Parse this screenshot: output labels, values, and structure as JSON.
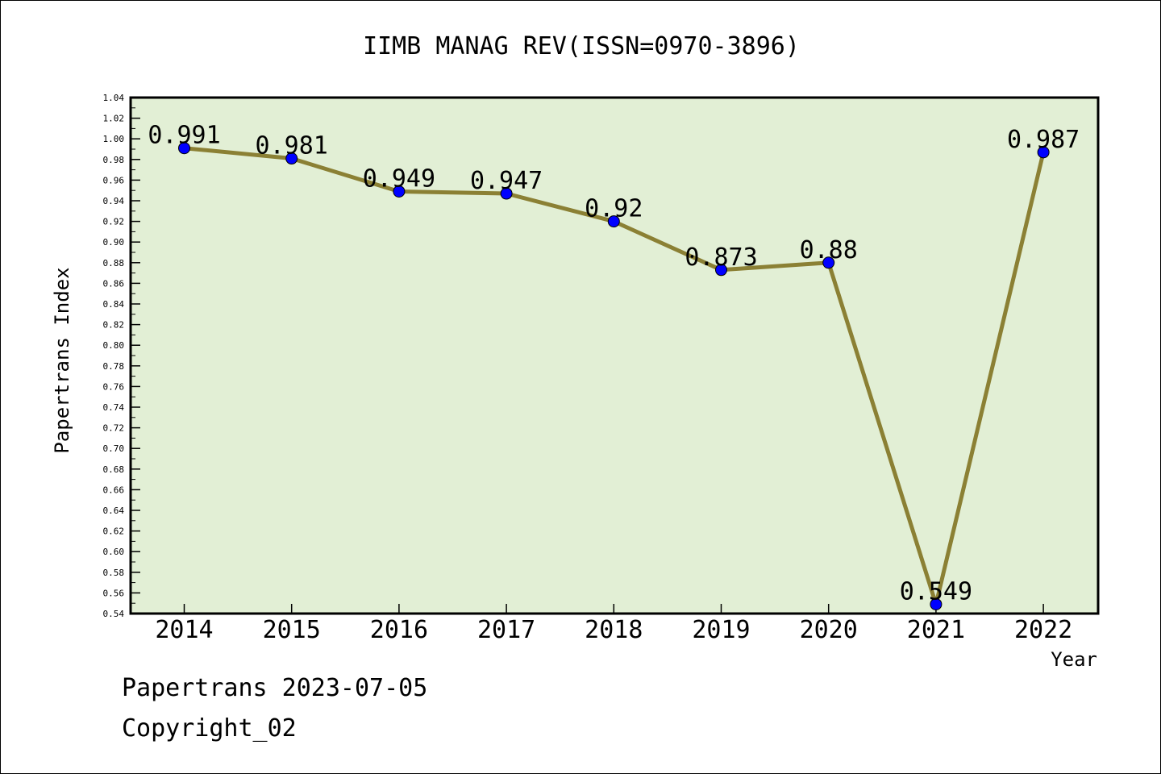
{
  "chart_data": {
    "type": "line",
    "title": "IIMB MANAG REV(ISSN=0970-3896)",
    "xlabel": "Year",
    "ylabel": "Papertrans Index",
    "categories": [
      "2014",
      "2015",
      "2016",
      "2017",
      "2018",
      "2019",
      "2020",
      "2021",
      "2022"
    ],
    "series": [
      {
        "values": [
          0.991,
          0.981,
          0.949,
          0.947,
          0.92,
          0.873,
          0.88,
          0.549,
          0.987
        ]
      }
    ],
    "data_labels": [
      "0.991",
      "0.981",
      "0.949",
      "0.947",
      "0.92",
      "0.873",
      "0.88",
      "0.549",
      "0.987"
    ],
    "ylim": [
      0.54,
      1.04
    ],
    "yticks": [
      "0.54",
      "0.56",
      "0.58",
      "0.60",
      "0.62",
      "0.64",
      "0.66",
      "0.68",
      "0.70",
      "0.72",
      "0.74",
      "0.76",
      "0.78",
      "0.80",
      "0.82",
      "0.84",
      "0.86",
      "0.88",
      "0.90",
      "0.92",
      "0.94",
      "0.96",
      "0.98",
      "1.00",
      "1.02",
      "1.04"
    ],
    "grid": false,
    "legend": "none",
    "colors": {
      "plot_background": "#e2efd5",
      "line": "#8b8034",
      "marker": "#0000ff"
    }
  },
  "footer": {
    "line1": "Papertrans 2023-07-05",
    "line2": "Copyright_02"
  }
}
